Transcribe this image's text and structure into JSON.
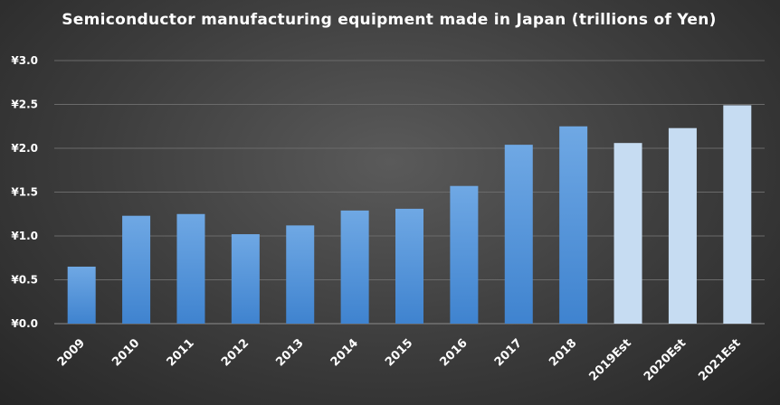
{
  "chart_data": {
    "type": "bar",
    "title": "Semiconductor manufacturing equipment made in Japan (trillions of Yen)",
    "categories": [
      "2009",
      "2010",
      "2011",
      "2012",
      "2013",
      "2014",
      "2015",
      "2016",
      "2017",
      "2018",
      "2019Est",
      "2020Est",
      "2021Est"
    ],
    "values": [
      0.65,
      1.23,
      1.25,
      1.02,
      1.12,
      1.29,
      1.31,
      1.57,
      2.04,
      2.25,
      2.06,
      2.23,
      2.49
    ],
    "estimate": [
      false,
      false,
      false,
      false,
      false,
      false,
      false,
      false,
      false,
      false,
      true,
      true,
      true
    ],
    "yticks": [
      "¥0.0",
      "¥0.5",
      "¥1.0",
      "¥1.5",
      "¥2.0",
      "¥2.5",
      "¥3.0"
    ],
    "ylim": [
      0,
      3.0
    ],
    "xlabel": "",
    "ylabel": "",
    "grid": true,
    "colors": {
      "actual_top": "#6fa8e4",
      "actual_bottom": "#3f83cf",
      "estimate": "#c6dcf2",
      "grid": "#6a6a6a",
      "axis": "#8c8c8c"
    }
  }
}
